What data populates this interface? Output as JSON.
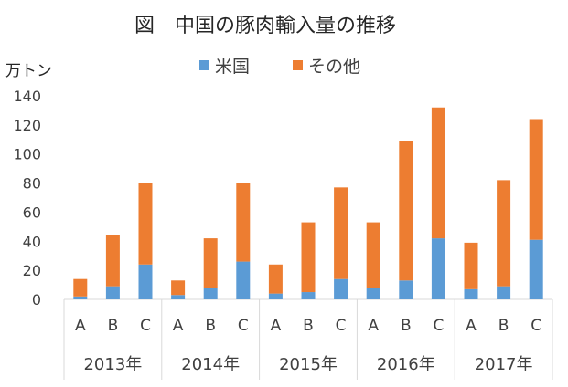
{
  "chart_data": {
    "type": "bar",
    "stacked": true,
    "title": "図　中国の豚肉輸入量の推移",
    "ylabel": "万トン",
    "ylim": [
      0,
      140
    ],
    "ytick_step": 20,
    "grid": false,
    "legend_position": "top",
    "groups": [
      {
        "label": "2013年",
        "categories": [
          "A",
          "B",
          "C"
        ]
      },
      {
        "label": "2014年",
        "categories": [
          "A",
          "B",
          "C"
        ]
      },
      {
        "label": "2015年",
        "categories": [
          "A",
          "B",
          "C"
        ]
      },
      {
        "label": "2016年",
        "categories": [
          "A",
          "B",
          "C"
        ]
      },
      {
        "label": "2017年",
        "categories": [
          "A",
          "B",
          "C"
        ]
      }
    ],
    "series": [
      {
        "name": "米国",
        "color": "#5B9BD5",
        "values": [
          2,
          9,
          24,
          3,
          8,
          26,
          4,
          5,
          14,
          8,
          13,
          42,
          7,
          9,
          41
        ]
      },
      {
        "name": "その他",
        "color": "#ED7D31",
        "values": [
          12,
          35,
          56,
          10,
          34,
          54,
          20,
          48,
          63,
          45,
          96,
          90,
          32,
          73,
          83
        ]
      }
    ]
  }
}
